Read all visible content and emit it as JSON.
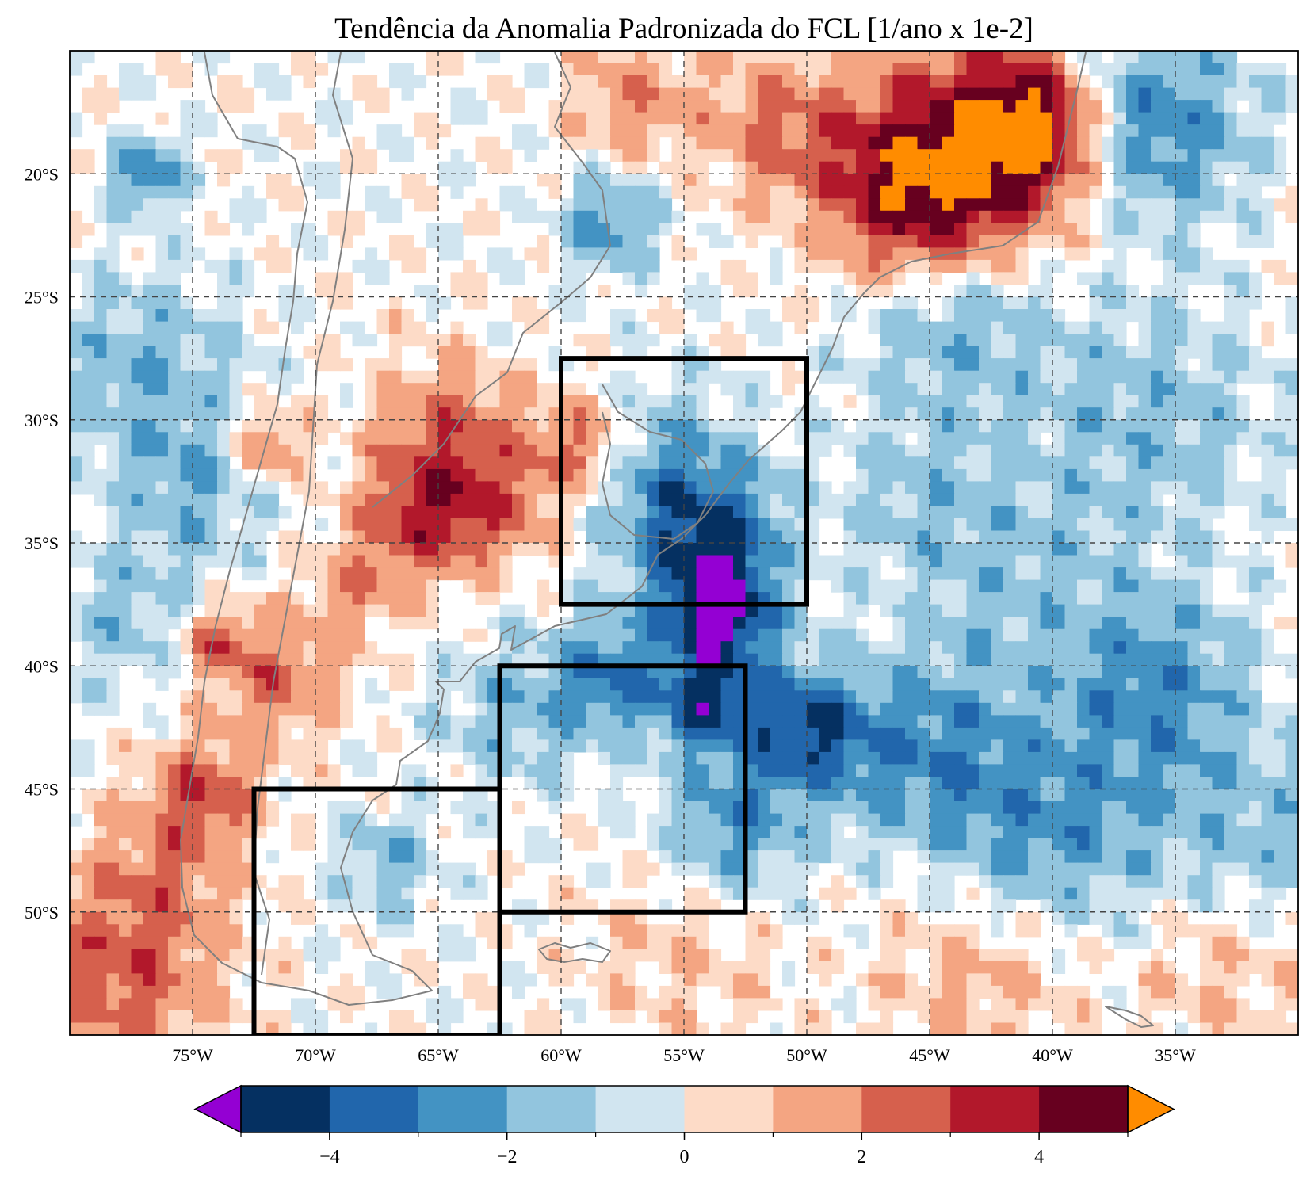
{
  "map": {
    "title": "Tendência da Anomalia Padronizada do FCL [1/ano x 1e-2]",
    "extent": {
      "lon": [
        -80,
        -30
      ],
      "lat": [
        -55,
        -15
      ]
    },
    "lon_ticks": [
      {
        "value": -75,
        "label": "75°W"
      },
      {
        "value": -70,
        "label": "70°W"
      },
      {
        "value": -65,
        "label": "65°W"
      },
      {
        "value": -60,
        "label": "60°W"
      },
      {
        "value": -55,
        "label": "55°W"
      },
      {
        "value": -50,
        "label": "50°W"
      },
      {
        "value": -45,
        "label": "45°W"
      },
      {
        "value": -40,
        "label": "40°W"
      },
      {
        "value": -35,
        "label": "35°W"
      }
    ],
    "lat_ticks": [
      {
        "value": -20,
        "label": "20°S"
      },
      {
        "value": -25,
        "label": "25°S"
      },
      {
        "value": -30,
        "label": "30°S"
      },
      {
        "value": -35,
        "label": "35°S"
      },
      {
        "value": -40,
        "label": "40°S"
      },
      {
        "value": -45,
        "label": "45°S"
      },
      {
        "value": -50,
        "label": "50°S"
      }
    ],
    "gridlines": true,
    "boxes": [
      {
        "lon": [
          -60,
          -50
        ],
        "lat": [
          -37.5,
          -27.5
        ]
      },
      {
        "lon": [
          -62.5,
          -52.5
        ],
        "lat": [
          -50,
          -40
        ]
      },
      {
        "lon": [
          -72.5,
          -62.5
        ],
        "lat": [
          -55,
          -45
        ]
      }
    ],
    "colorbar": {
      "levels": [
        -5,
        -4,
        -3,
        -2,
        -1,
        0,
        1,
        2,
        3,
        4,
        5
      ],
      "colors": [
        "#053061",
        "#2166ac",
        "#4393c3",
        "#92c5de",
        "#d1e5f0",
        "#fddbc7",
        "#f4a582",
        "#d6604d",
        "#b2182b",
        "#67001f"
      ],
      "under_color": "#9400d3",
      "over_color": "#ff8c00",
      "extend": "both",
      "ticks": [
        {
          "value": -4,
          "label": "−4"
        },
        {
          "value": -2,
          "label": "−2"
        },
        {
          "value": 0,
          "label": "0"
        },
        {
          "value": 2,
          "label": "2"
        },
        {
          "value": 4,
          "label": "4"
        }
      ]
    },
    "coast_color": "#808080"
  }
}
